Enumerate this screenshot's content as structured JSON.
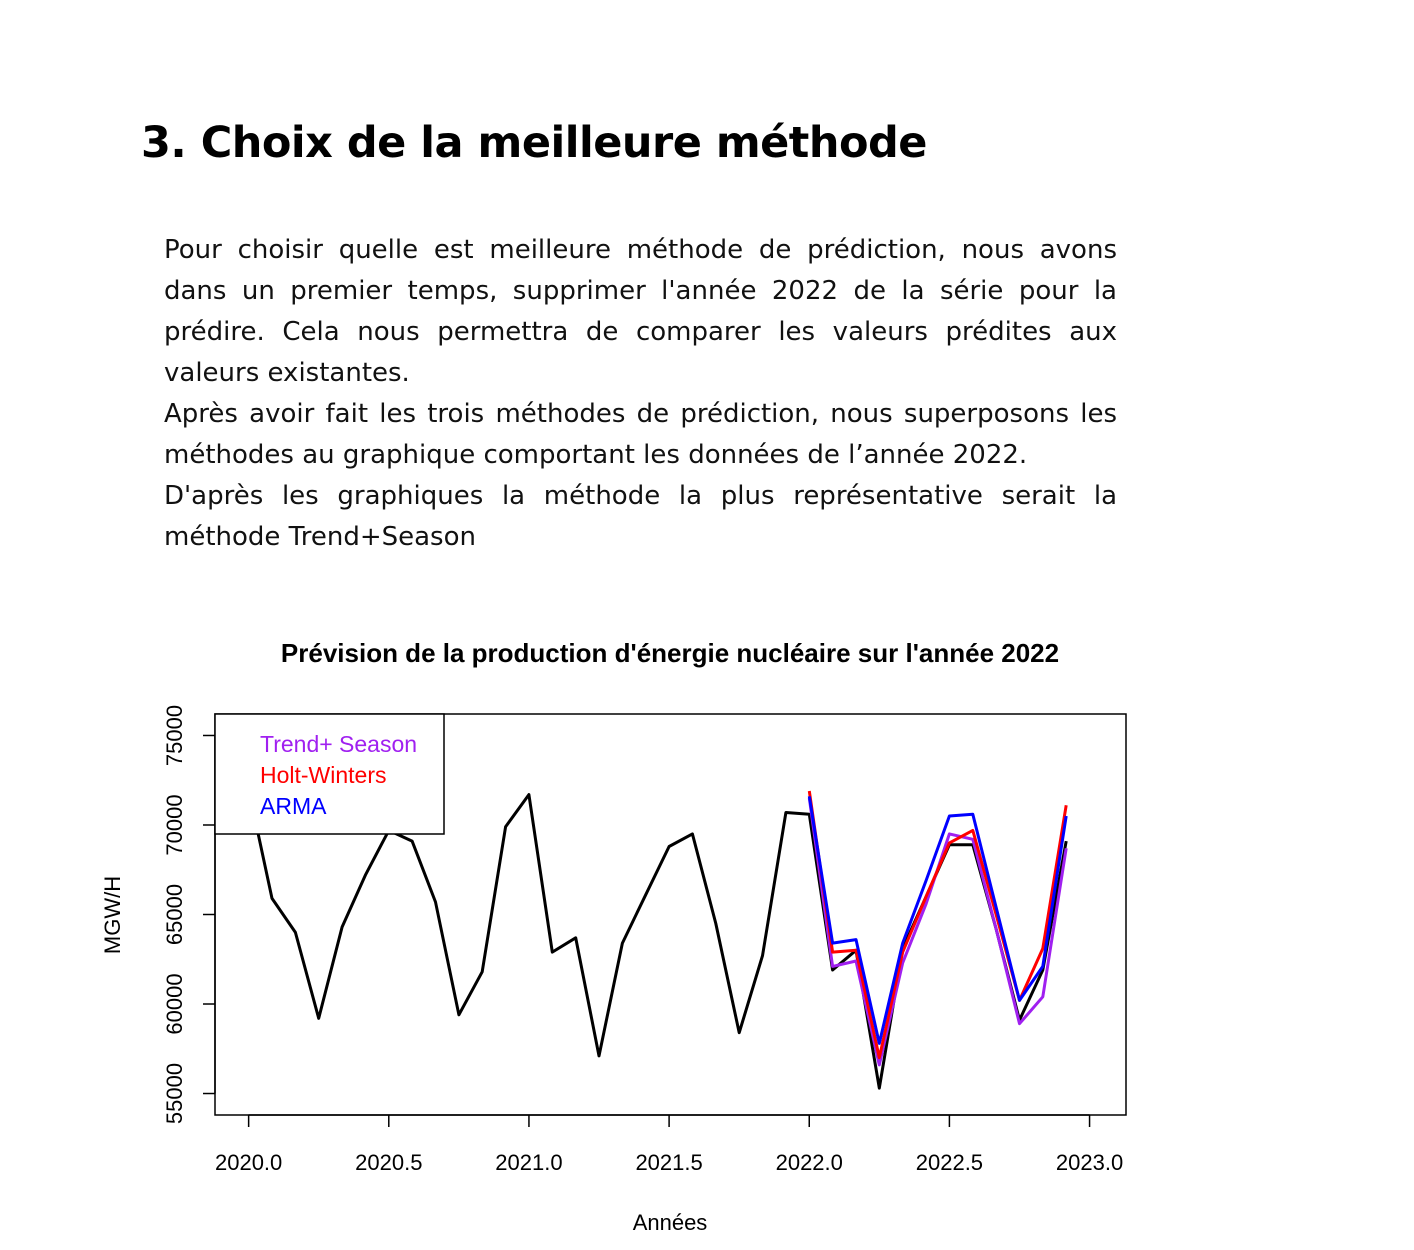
{
  "section": {
    "heading": "3. Choix de la meilleure méthode",
    "paragraphs": [
      "Pour choisir quelle est meilleure méthode de prédiction, nous avons dans un premier temps, supprimer l'année 2022 de la série pour la prédire.  Cela nous permettra de comparer les valeurs prédites aux valeurs existantes.",
      "Après avoir fait les trois méthodes de prédiction, nous superposons les méthodes au graphique comportant les données de l’année 2022.",
      "D'après les graphiques la méthode la plus représentative serait la méthode Trend+Season"
    ]
  },
  "chart_data": {
    "type": "line",
    "title": "Prévision de la production d'énergie nucléaire sur l'année 2022",
    "xlabel": "Années",
    "ylabel": "MGW/H",
    "xlim": [
      2019.88,
      2023.13
    ],
    "ylim": [
      53800,
      76200
    ],
    "xticks": [
      2020.0,
      2020.5,
      2021.0,
      2021.5,
      2022.0,
      2022.5,
      2023.0
    ],
    "xtick_labels": [
      "2020.0",
      "2020.5",
      "2021.0",
      "2021.5",
      "2022.0",
      "2022.5",
      "2023.0"
    ],
    "yticks": [
      55000,
      60000,
      65000,
      70000,
      75000
    ],
    "ytick_labels": [
      "55000",
      "60000",
      "65000",
      "70000",
      "75000"
    ],
    "grid": false,
    "legend": {
      "position": "top-left",
      "entries": [
        "Trend+ Season",
        "Holt-Winters",
        "ARMA"
      ]
    },
    "series": [
      {
        "name": "",
        "color": "#000000",
        "x": [
          2020.0,
          2020.0833,
          2020.1667,
          2020.25,
          2020.3333,
          2020.4167,
          2020.5,
          2020.5833,
          2020.6667,
          2020.75,
          2020.8333,
          2020.9167,
          2021.0,
          2021.0833,
          2021.1667,
          2021.25,
          2021.3333,
          2021.4167,
          2021.5,
          2021.5833,
          2021.6667,
          2021.75,
          2021.8333,
          2021.9167,
          2022.0,
          2022.0833,
          2022.1667,
          2022.25,
          2022.3333,
          2022.4167,
          2022.5,
          2022.5833,
          2022.6667,
          2022.75,
          2022.8333,
          2022.9167
        ],
        "y": [
          72000,
          65900,
          64000,
          59200,
          64300,
          67200,
          69700,
          69100,
          65700,
          59400,
          61800,
          69900,
          71700,
          62900,
          63700,
          57100,
          63400,
          66100,
          68800,
          69500,
          64500,
          58400,
          62700,
          70700,
          70600,
          61900,
          63000,
          55300,
          63100,
          66000,
          68900,
          68900,
          64200,
          59100,
          61900,
          69100
        ]
      },
      {
        "name": "Trend+ Season",
        "color": "#a020f0",
        "x": [
          2022.0,
          2022.0833,
          2022.1667,
          2022.25,
          2022.3333,
          2022.4167,
          2022.5,
          2022.5833,
          2022.6667,
          2022.75,
          2022.8333,
          2022.9167
        ],
        "y": [
          71500,
          62100,
          62400,
          56600,
          62300,
          65600,
          69500,
          69200,
          64200,
          58900,
          60400,
          68700
        ]
      },
      {
        "name": "Holt-Winters",
        "color": "#ff0000",
        "x": [
          2022.0,
          2022.0833,
          2022.1667,
          2022.25,
          2022.3333,
          2022.4167,
          2022.5,
          2022.5833,
          2022.6667,
          2022.75,
          2022.8333,
          2022.9167
        ],
        "y": [
          71900,
          62900,
          63000,
          57000,
          62900,
          66000,
          69000,
          69700,
          65000,
          60200,
          63100,
          71100
        ]
      },
      {
        "name": "ARMA",
        "color": "#0000ff",
        "x": [
          2022.0,
          2022.0833,
          2022.1667,
          2022.25,
          2022.3333,
          2022.4167,
          2022.5,
          2022.5833,
          2022.6667,
          2022.75,
          2022.8333,
          2022.9167
        ],
        "y": [
          71600,
          63400,
          63600,
          57800,
          63400,
          66900,
          70500,
          70600,
          65400,
          60200,
          62100,
          70500
        ]
      }
    ]
  }
}
